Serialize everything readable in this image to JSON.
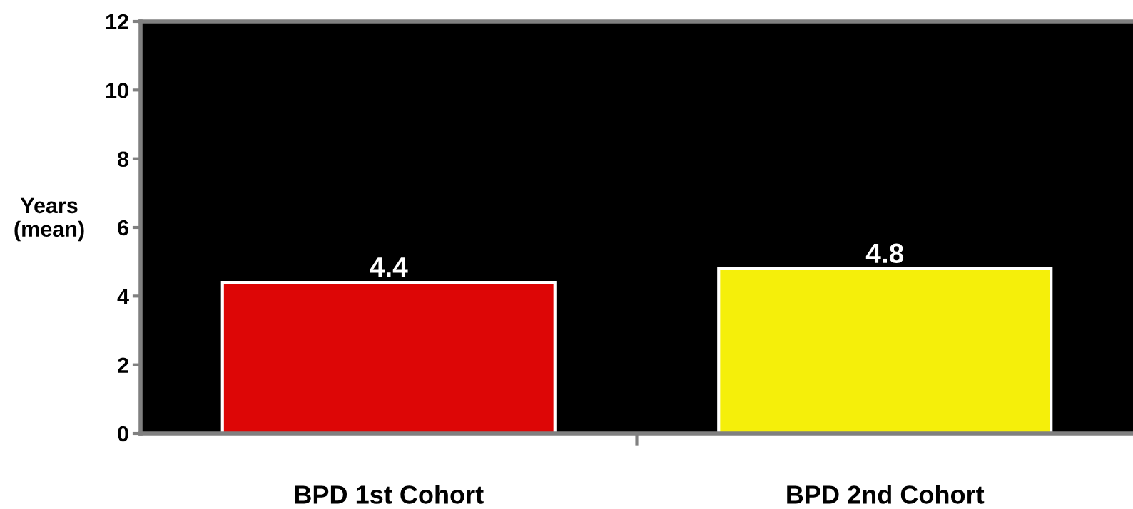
{
  "chart_data": {
    "type": "bar",
    "ylabel": "Years\n(mean)",
    "categories": [
      "BPD 1st Cohort",
      "BPD 2nd Cohort"
    ],
    "values": [
      4.4,
      4.8
    ],
    "colors": [
      "#dd0606",
      "#f5ef0a"
    ],
    "ylim": [
      0,
      12
    ],
    "yticks": [
      0,
      2,
      4,
      6,
      8,
      10,
      12
    ],
    "data_labels": true,
    "grid": false,
    "legend": false
  }
}
